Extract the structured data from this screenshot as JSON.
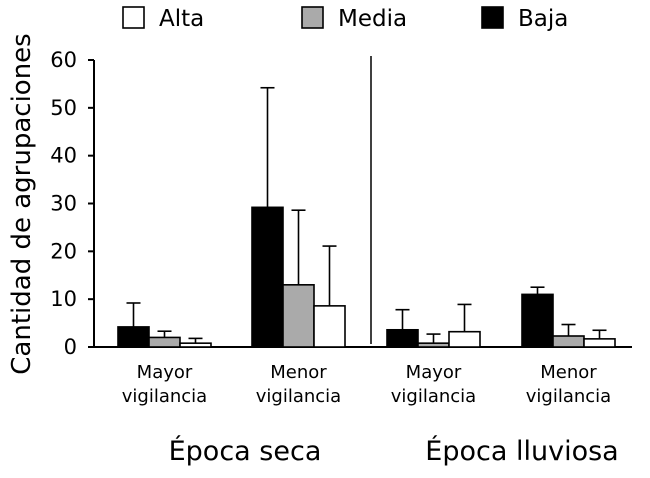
{
  "chart_data": {
    "type": "bar",
    "ylabel": "Cantidad de agrupaciones",
    "ylim": [
      0,
      60
    ],
    "yticks": [
      "0",
      "10",
      "20",
      "30",
      "40",
      "50",
      "60"
    ],
    "grid": false,
    "legend_position": "top",
    "groups": [
      {
        "label": "Época seca",
        "categories": [
          "Mayor vigilancia",
          "Menor vigilancia"
        ]
      },
      {
        "label": "Época lluviosa",
        "categories": [
          "Mayor vigilancia",
          "Menor vigilancia"
        ]
      }
    ],
    "category_label_lines": [
      [
        "Mayor",
        "vigilancia"
      ],
      [
        "Menor",
        "vigilancia"
      ],
      [
        "Mayor",
        "vigilancia"
      ],
      [
        "Menor",
        "vigilancia"
      ]
    ],
    "legend_order": [
      "Alta",
      "Media",
      "Baja"
    ],
    "series": [
      {
        "name": "Baja",
        "color": "#000000",
        "values": [
          4.2,
          29.2,
          3.6,
          11.0
        ],
        "error": [
          5.0,
          25.0,
          4.2,
          1.5
        ]
      },
      {
        "name": "Media",
        "color": "#aaaaaa",
        "values": [
          2.0,
          13.0,
          0.8,
          2.3
        ],
        "error": [
          1.3,
          15.6,
          1.9,
          2.4
        ]
      },
      {
        "name": "Alta",
        "color": "#ffffff",
        "values": [
          0.8,
          8.6,
          3.2,
          1.7
        ],
        "error": [
          1.0,
          12.5,
          5.7,
          1.8
        ]
      }
    ]
  }
}
